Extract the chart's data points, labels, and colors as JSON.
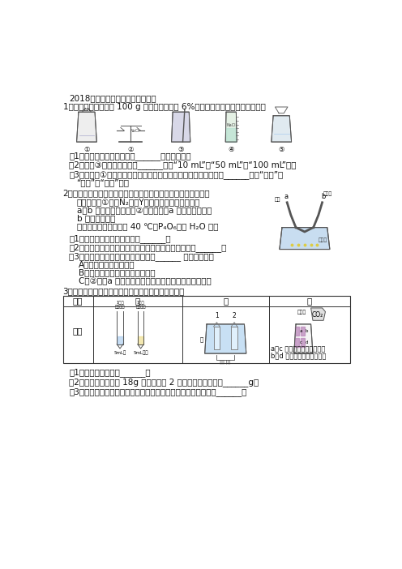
{
  "title": "2018年北京各区二模实验原理分析",
  "q1_intro": "1．（西）实验室配制 100 g 溶质质量分数为 6%的氯化钓溶液，实验操作如下：",
  "q1_1": "（1）正确的实验操作顺序是______（填序号）。",
  "q1_2": "（2）操作③中量筒的量程是______（填“10 mL”、“50 mL”或“100 mL”）。",
  "q1_3a": "（3）若操作①中有部分固体洒落桂面，所得溶液的溶质质量分数会______（填“偏大”、",
  "q1_3b": "“不变”或“偏小”）。",
  "q2_intro": "2．（西）用右图装置（夹持仪器略去）研究可燃物的燃烧条件。",
  "q2_proc1": "实验过程：①通入N₂，将Y管右侧部分放入热水中，",
  "q2_proc2": "a、b 处白磷均不燃烧；②通入空气，a 处白磷不燃烧，",
  "q2_proc3": "b 处白磷燃烧。",
  "q2_data": "资料：白磷的着火点为 40 ℃，P₄O₆能与 H₂O 反应",
  "q2_1": "（1）白磷燃烧的化学方程式是______。",
  "q2_2": "（2）实验过程中，能说明可燃物燃烧需要氧气的现象是______。",
  "q2_3": "（3）关于该实验的说法中，正确的是______ （填序号）。",
  "q2_A": "A．湿棉花可以吸收白烟",
  "q2_B": "B．烧杯中热水的作用是提供热量",
  "q2_C": "C．②中，a 处白磷不燃烧的原因是温度没有达到着火点",
  "q3_intro": "3．（朝）某小组进行了如下实验，请回答下列问题。",
  "q3_col1": "序号",
  "q3_col2": "甲",
  "q3_col3": "乙",
  "q3_col4": "丙",
  "q3_row1": "实验",
  "q3_1": "（1）甲实验的目的是______。",
  "q3_2": "（2）乙实验，若电解 18g 水，则试管 2 中得到的气体质量为______g。",
  "q3_3": "（3）丙实验，说明二氧化碳密度大于空气且能与水反应的现象是______。",
  "q3_desc1": "a、c 为干燥的紫色石蕊试纸",
  "q3_desc2": "b、d 为湿润的紫色石蕊试纸",
  "bg_color": "#ffffff",
  "font_size": 7.5
}
